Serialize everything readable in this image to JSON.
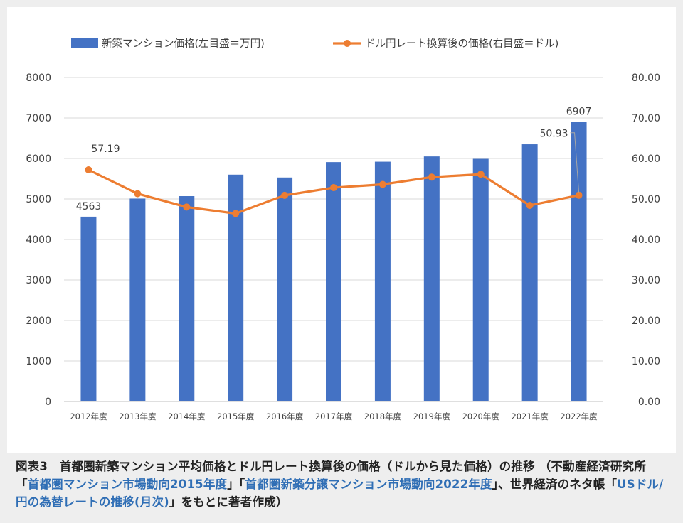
{
  "chart_data": {
    "type": "bar+line",
    "categories": [
      "2012年度",
      "2013年度",
      "2014年度",
      "2015年度",
      "2016年度",
      "2017年度",
      "2018年度",
      "2019年度",
      "2020年度",
      "2021年度",
      "2022年度"
    ],
    "series": [
      {
        "name": "新築マンション価格(左目盛＝万円)",
        "type": "bar",
        "axis": "left",
        "color": "#4472c4",
        "values": [
          4563,
          5010,
          5070,
          5600,
          5530,
          5910,
          5920,
          6050,
          5990,
          6350,
          6907
        ]
      },
      {
        "name": "ドル円レート換算後の価格(右目盛＝ドル)",
        "type": "line",
        "axis": "right",
        "color": "#ed7d31",
        "values": [
          57.19,
          51.3,
          48.0,
          46.4,
          50.9,
          52.8,
          53.6,
          55.4,
          56.1,
          48.4,
          50.93
        ]
      }
    ],
    "left_axis": {
      "min": 0,
      "max": 8000,
      "ticks": [
        "0",
        "1000",
        "2000",
        "3000",
        "4000",
        "5000",
        "6000",
        "7000",
        "8000"
      ]
    },
    "right_axis": {
      "min": 0,
      "max": 80,
      "ticks": [
        "0.00",
        "10.00",
        "20.00",
        "30.00",
        "40.00",
        "50.00",
        "60.00",
        "70.00",
        "80.00"
      ]
    },
    "data_labels": {
      "bar_first": "4563",
      "bar_last": "6907",
      "line_first": "57.19",
      "line_last": "50.93"
    },
    "legend_position": "top",
    "grid": true
  },
  "caption": {
    "part1": "図表3　首都圏新築マンション平均価格とドル円レート換算後の価格（ドルから見た価格）の推移 （不動産経済研究所「",
    "link1": "首都圏マンション市場動向2015年度",
    "part2": "」「",
    "link2": "首都圏新築分譲マンション市場動向2022年度",
    "part3": "」、世界経済のネタ帳「",
    "link3": "USドル/円の為替レートの推移(月次)",
    "part4": "」をもとに著者作成）"
  }
}
